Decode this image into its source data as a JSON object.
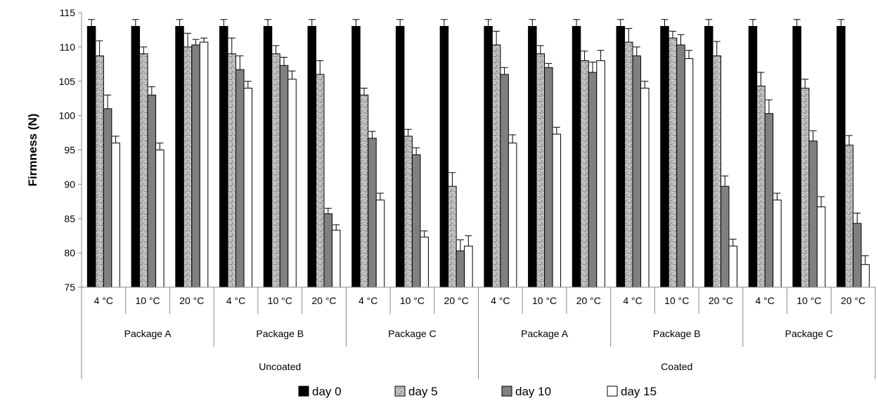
{
  "chart_data": {
    "type": "bar",
    "ylabel": "Firmness (N)",
    "xlabel": "",
    "ylim": [
      75,
      115
    ],
    "yticks": [
      75,
      80,
      85,
      90,
      95,
      100,
      105,
      110,
      115
    ],
    "grid": false,
    "legend_position": "bottom",
    "groups": [
      {
        "label": "Uncoated",
        "packages": [
          {
            "label": "Package A",
            "temps": [
              "4 °C",
              "10 °C",
              "20 °C"
            ]
          },
          {
            "label": "Package B",
            "temps": [
              "4 °C",
              "10 °C",
              "20 °C"
            ]
          },
          {
            "label": "Package C",
            "temps": [
              "4 °C",
              "10 °C",
              "20 °C"
            ]
          }
        ]
      },
      {
        "label": "Coated",
        "packages": [
          {
            "label": "Package A",
            "temps": [
              "4 °C",
              "10 °C",
              "20 °C"
            ]
          },
          {
            "label": "Package B",
            "temps": [
              "4 °C",
              "10 °C",
              "20 °C"
            ]
          },
          {
            "label": "Package C",
            "temps": [
              "4 °C",
              "10 °C",
              "20 °C"
            ]
          }
        ]
      }
    ],
    "series": [
      {
        "name": "day 0",
        "color": "#000000",
        "pattern": "solid",
        "values": [
          113,
          113,
          113,
          113,
          113,
          113,
          113,
          113,
          113,
          113,
          113,
          113,
          113,
          113,
          113,
          113,
          113,
          113
        ],
        "errors": [
          1,
          1,
          1,
          1,
          1,
          1,
          1,
          1,
          1,
          1,
          1,
          1,
          1,
          1,
          1,
          1,
          1,
          1
        ]
      },
      {
        "name": "day 5",
        "color": "#b0b0b0",
        "pattern": "speckle",
        "values": [
          108.7,
          109.0,
          110.0,
          109.0,
          109.0,
          106.0,
          103.0,
          97.0,
          89.7,
          110.3,
          109.0,
          108.0,
          110.7,
          111.3,
          108.7,
          104.3,
          104.0,
          95.7
        ],
        "errors": [
          2.2,
          1.0,
          2.0,
          2.3,
          1.2,
          2.0,
          1.0,
          1.0,
          2.0,
          2.0,
          1.2,
          1.4,
          2.0,
          1.0,
          2.1,
          2.0,
          1.3,
          1.4
        ]
      },
      {
        "name": "day 10",
        "color": "#808080",
        "pattern": "solid",
        "values": [
          101.0,
          103.0,
          110.3,
          106.7,
          107.3,
          85.7,
          96.7,
          94.3,
          80.3,
          106.0,
          107.0,
          106.3,
          108.7,
          110.3,
          89.7,
          100.3,
          96.3,
          84.3
        ],
        "errors": [
          2.0,
          1.2,
          0.8,
          2.0,
          1.2,
          0.8,
          1.0,
          1.0,
          1.6,
          1.0,
          0.6,
          1.5,
          1.3,
          1.5,
          1.5,
          2.0,
          1.5,
          1.5
        ]
      },
      {
        "name": "day 15",
        "color": "#ffffff",
        "pattern": "solid",
        "values": [
          96.0,
          95.0,
          110.7,
          104.0,
          105.3,
          83.3,
          87.7,
          82.3,
          81.0,
          96.0,
          97.3,
          108.0,
          104.0,
          108.3,
          81.0,
          87.7,
          86.7,
          78.3
        ],
        "errors": [
          1.0,
          1.0,
          0.6,
          1.0,
          1.2,
          0.8,
          1.0,
          0.9,
          1.5,
          1.2,
          1.0,
          1.5,
          1.0,
          1.2,
          1.0,
          1.0,
          1.5,
          1.3
        ]
      }
    ]
  }
}
